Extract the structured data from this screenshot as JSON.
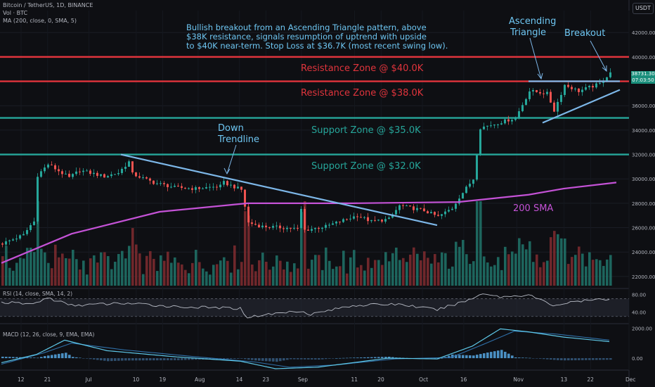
{
  "header": {
    "symbol_line": "Bitcoin / TetherUS, 1D, BINANCE",
    "volume_line": "Vol · BTC",
    "ma_line": "MA (200, close, 0, SMA, 5)",
    "unit_button": "USDT",
    "last_price": "38731.30",
    "countdown": "07:03:50"
  },
  "annotations": {
    "note_lines": [
      "Bullish breakout from an Ascending Triangle pattern, above",
      "$38K resistance, signals resumption of uptrend with upside",
      "to $40K near-term. Stop Loss at $36.7K (most recent swing low)."
    ],
    "down_trendline": [
      "Down",
      "Trendline"
    ],
    "ascending_triangle": [
      "Ascending",
      "Triangle"
    ],
    "breakout": "Breakout",
    "sma_label": "200 SMA"
  },
  "colors": {
    "resistance": "#e0343c",
    "support": "#26a69a",
    "note_text": "#6ec6f2",
    "trendline": "#7db7e8",
    "sma": "#c452d6",
    "up_candle": "#26a69a",
    "down_candle": "#ef5350"
  },
  "chart_data": [
    {
      "type": "line",
      "title": "",
      "x_tick_labels": [
        "12",
        "21",
        "Jul",
        "10",
        "19",
        "Aug",
        "14",
        "23",
        "Sep",
        "11",
        "20",
        "Oct",
        "16",
        "Nov",
        "13",
        "22",
        "Dec"
      ],
      "y_tick_labels": [
        "42000.00",
        "40000.00",
        "38000.00",
        "36000.00",
        "34000.00",
        "32000.00",
        "30000.00",
        "28000.00",
        "26000.00",
        "24000.00",
        "22000.00"
      ],
      "y_range": [
        21300,
        43800
      ],
      "zones": [
        {
          "label": "Resistance Zone @ $40.0K",
          "value": 40000,
          "kind": "resistance"
        },
        {
          "label": "Resistance Zone @ $38.0K",
          "value": 38000,
          "kind": "resistance"
        },
        {
          "label": "Support Zone @ $35.0K",
          "value": 35000,
          "kind": "support"
        },
        {
          "label": "Support Zone @ $32.0K",
          "value": 32000,
          "kind": "support"
        }
      ],
      "price_anchors": [
        {
          "d": 0,
          "v": 24700
        },
        {
          "d": 6,
          "v": 25400
        },
        {
          "d": 8,
          "v": 26200
        },
        {
          "d": 9,
          "v": 26500
        },
        {
          "d": 10,
          "v": 30300
        },
        {
          "d": 13,
          "v": 31200
        },
        {
          "d": 19,
          "v": 30100
        },
        {
          "d": 22,
          "v": 30700
        },
        {
          "d": 29,
          "v": 30200
        },
        {
          "d": 33,
          "v": 30500
        },
        {
          "d": 36,
          "v": 31400
        },
        {
          "d": 37,
          "v": 30400
        },
        {
          "d": 43,
          "v": 29700
        },
        {
          "d": 49,
          "v": 29300
        },
        {
          "d": 55,
          "v": 29200
        },
        {
          "d": 62,
          "v": 29400
        },
        {
          "d": 63,
          "v": 29700
        },
        {
          "d": 68,
          "v": 29100
        },
        {
          "d": 70,
          "v": 26400
        },
        {
          "d": 74,
          "v": 26100
        },
        {
          "d": 80,
          "v": 26000
        },
        {
          "d": 84,
          "v": 25900
        },
        {
          "d": 85,
          "v": 27500
        },
        {
          "d": 86,
          "v": 25800
        },
        {
          "d": 92,
          "v": 26100
        },
        {
          "d": 97,
          "v": 26600
        },
        {
          "d": 101,
          "v": 27000
        },
        {
          "d": 105,
          "v": 26500
        },
        {
          "d": 110,
          "v": 26700
        },
        {
          "d": 113,
          "v": 27800
        },
        {
          "d": 120,
          "v": 27400
        },
        {
          "d": 124,
          "v": 26900
        },
        {
          "d": 128,
          "v": 27600
        },
        {
          "d": 130,
          "v": 28500
        },
        {
          "d": 134,
          "v": 30000
        },
        {
          "d": 136,
          "v": 34200
        },
        {
          "d": 140,
          "v": 34500
        },
        {
          "d": 146,
          "v": 35000
        },
        {
          "d": 150,
          "v": 37200
        },
        {
          "d": 155,
          "v": 37000
        },
        {
          "d": 157,
          "v": 35600
        },
        {
          "d": 160,
          "v": 37700
        },
        {
          "d": 164,
          "v": 37200
        },
        {
          "d": 170,
          "v": 37800
        },
        {
          "d": 173,
          "v": 38731
        }
      ],
      "sma_200": [
        {
          "d": 0,
          "v": 23100
        },
        {
          "d": 20,
          "v": 25500
        },
        {
          "d": 45,
          "v": 27300
        },
        {
          "d": 70,
          "v": 28000
        },
        {
          "d": 100,
          "v": 28000
        },
        {
          "d": 130,
          "v": 28100
        },
        {
          "d": 150,
          "v": 28700
        },
        {
          "d": 160,
          "v": 29200
        },
        {
          "d": 175,
          "v": 29700
        }
      ],
      "trendlines": [
        {
          "name": "down",
          "from": {
            "d": 34,
            "v": 32000
          },
          "to": {
            "d": 124,
            "v": 26200
          }
        },
        {
          "name": "triangle_support",
          "from": {
            "d": 154,
            "v": 34600
          },
          "to": {
            "d": 176,
            "v": 37300
          }
        },
        {
          "name": "triangle_resistance",
          "from": {
            "d": 150,
            "v": 38000
          },
          "to": {
            "d": 176,
            "v": 38000
          }
        }
      ]
    },
    {
      "type": "line",
      "title": "RSI (14, close, SMA, 14, 2)",
      "y_tick_labels": [
        "80.00",
        "40.00"
      ],
      "y_range": [
        20,
        90
      ],
      "band": [
        30,
        70
      ],
      "rsi_anchors": [
        {
          "d": 0,
          "v": 62
        },
        {
          "d": 9,
          "v": 58
        },
        {
          "d": 13,
          "v": 72
        },
        {
          "d": 20,
          "v": 55
        },
        {
          "d": 35,
          "v": 60
        },
        {
          "d": 50,
          "v": 52
        },
        {
          "d": 68,
          "v": 48
        },
        {
          "d": 70,
          "v": 28
        },
        {
          "d": 74,
          "v": 33
        },
        {
          "d": 85,
          "v": 43
        },
        {
          "d": 88,
          "v": 35
        },
        {
          "d": 100,
          "v": 55
        },
        {
          "d": 113,
          "v": 58
        },
        {
          "d": 124,
          "v": 45
        },
        {
          "d": 134,
          "v": 70
        },
        {
          "d": 137,
          "v": 83
        },
        {
          "d": 142,
          "v": 74
        },
        {
          "d": 150,
          "v": 79
        },
        {
          "d": 157,
          "v": 55
        },
        {
          "d": 164,
          "v": 64
        },
        {
          "d": 173,
          "v": 70
        }
      ]
    },
    {
      "type": "bar",
      "title": "MACD (12, 26, close, 9, EMA, EMA)",
      "y_tick_labels": [
        "2000.00",
        "0.00"
      ],
      "y_range": [
        -700,
        2200
      ],
      "macd_anchors": [
        {
          "d": 0,
          "v": -300
        },
        {
          "d": 10,
          "v": 250
        },
        {
          "d": 18,
          "v": 1200
        },
        {
          "d": 30,
          "v": 500
        },
        {
          "d": 50,
          "v": 80
        },
        {
          "d": 68,
          "v": -200
        },
        {
          "d": 78,
          "v": -700
        },
        {
          "d": 90,
          "v": -600
        },
        {
          "d": 110,
          "v": 0
        },
        {
          "d": 124,
          "v": -50
        },
        {
          "d": 134,
          "v": 800
        },
        {
          "d": 142,
          "v": 1950
        },
        {
          "d": 150,
          "v": 1750
        },
        {
          "d": 160,
          "v": 1400
        },
        {
          "d": 173,
          "v": 1100
        }
      ],
      "signal_anchors": [
        {
          "d": 0,
          "v": -400
        },
        {
          "d": 12,
          "v": 350
        },
        {
          "d": 20,
          "v": 1000
        },
        {
          "d": 35,
          "v": 550
        },
        {
          "d": 55,
          "v": 100
        },
        {
          "d": 72,
          "v": -250
        },
        {
          "d": 82,
          "v": -600
        },
        {
          "d": 95,
          "v": -450
        },
        {
          "d": 112,
          "v": -50
        },
        {
          "d": 128,
          "v": 50
        },
        {
          "d": 138,
          "v": 1000
        },
        {
          "d": 146,
          "v": 1800
        },
        {
          "d": 158,
          "v": 1600
        },
        {
          "d": 173,
          "v": 1200
        }
      ]
    }
  ]
}
